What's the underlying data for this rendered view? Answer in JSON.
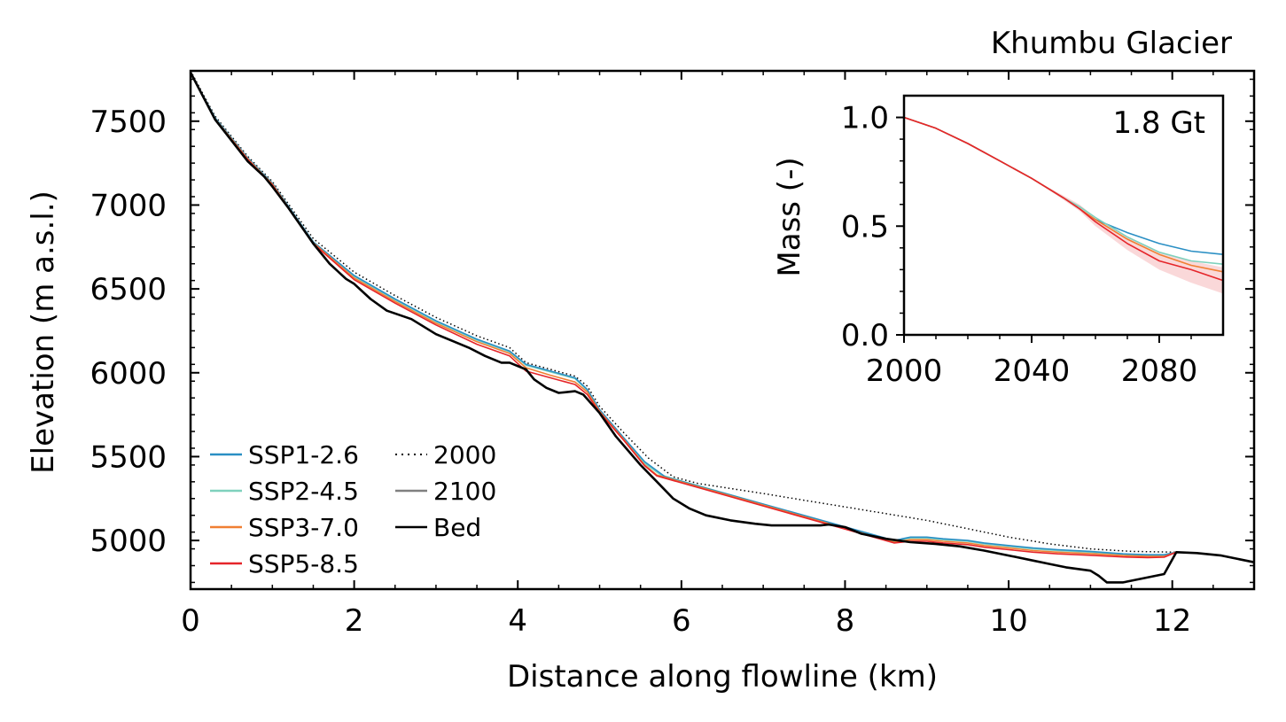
{
  "title": "Khumbu Glacier",
  "colors": {
    "ssp126": "#2a8fc4",
    "ssp245": "#7fd1bd",
    "ssp370": "#f07f32",
    "ssp585": "#e5252a",
    "y2100": "#808080",
    "bed": "#000000",
    "y2000": "#000000"
  },
  "legend": {
    "items": [
      {
        "label": "SSP1-2.6",
        "style": "solid",
        "color_key": "ssp126"
      },
      {
        "label": "SSP2-4.5",
        "style": "solid",
        "color_key": "ssp245"
      },
      {
        "label": "SSP3-7.0",
        "style": "solid",
        "color_key": "ssp370"
      },
      {
        "label": "SSP5-8.5",
        "style": "solid",
        "color_key": "ssp585"
      },
      {
        "label": "2000",
        "style": "dotted",
        "color_key": "y2000"
      },
      {
        "label": "2100",
        "style": "solid",
        "color_key": "y2100"
      },
      {
        "label": "Bed",
        "style": "solid",
        "color_key": "bed"
      }
    ]
  },
  "chart_data": [
    {
      "type": "line",
      "title": "Khumbu Glacier",
      "xlabel": "Distance along flowline (km)",
      "ylabel": "Elevation (m a.s.l.)",
      "xlim": [
        0,
        13
      ],
      "ylim": [
        4710,
        7800
      ],
      "xticks": [
        0,
        2,
        4,
        6,
        8,
        10,
        12
      ],
      "yticks": [
        5000,
        5500,
        6000,
        6500,
        7000,
        7500
      ],
      "x_tick_labels": [
        "0",
        "2",
        "4",
        "6",
        "8",
        "10",
        "12"
      ],
      "y_tick_labels": [
        "5000",
        "5500",
        "6000",
        "6500",
        "7000",
        "7500"
      ],
      "legend_position": "lower-left",
      "series": [
        {
          "name": "Bed",
          "color_key": "bed",
          "style": "solid",
          "x": [
            0,
            0.3,
            0.7,
            0.9,
            1.0,
            1.2,
            1.5,
            1.7,
            1.9,
            2.0,
            2.2,
            2.4,
            2.7,
            3.0,
            3.2,
            3.4,
            3.6,
            3.8,
            3.9,
            4.1,
            4.2,
            4.35,
            4.5,
            4.7,
            4.8,
            5.0,
            5.2,
            5.5,
            5.7,
            5.9,
            6.1,
            6.3,
            6.6,
            6.9,
            7.1,
            7.3,
            7.5,
            7.7,
            7.8,
            8.0,
            8.2,
            8.5,
            8.8,
            9.1,
            9.4,
            9.7,
            10.0,
            10.3,
            10.5,
            10.7,
            11.0,
            11.1,
            11.2,
            11.4,
            11.6,
            11.9,
            12.05,
            12.3,
            12.6,
            13.0
          ],
          "y": [
            7790,
            7510,
            7260,
            7170,
            7110,
            6980,
            6770,
            6650,
            6560,
            6530,
            6440,
            6370,
            6320,
            6230,
            6190,
            6150,
            6100,
            6060,
            6060,
            6020,
            5960,
            5910,
            5880,
            5890,
            5870,
            5760,
            5620,
            5450,
            5350,
            5250,
            5190,
            5150,
            5120,
            5100,
            5090,
            5090,
            5090,
            5090,
            5095,
            5080,
            5040,
            5010,
            4990,
            4980,
            4965,
            4940,
            4910,
            4880,
            4860,
            4840,
            4820,
            4790,
            4750,
            4750,
            4770,
            4800,
            4930,
            4925,
            4910,
            4870
          ]
        },
        {
          "name": "2000",
          "color_key": "y2000",
          "style": "dotted",
          "x": [
            0,
            0.3,
            0.7,
            1.0,
            1.5,
            2.0,
            2.5,
            3.0,
            3.5,
            3.9,
            4.1,
            4.4,
            4.7,
            4.85,
            5.0,
            5.3,
            5.6,
            5.9,
            6.2,
            6.6,
            7.0,
            7.5,
            8.0,
            8.5,
            9.0,
            9.5,
            10.0,
            10.5,
            11.0,
            11.5,
            12.05
          ],
          "y": [
            7800,
            7530,
            7290,
            7140,
            6800,
            6600,
            6460,
            6330,
            6220,
            6150,
            6060,
            6020,
            5980,
            5920,
            5800,
            5640,
            5490,
            5380,
            5340,
            5310,
            5280,
            5240,
            5200,
            5160,
            5120,
            5070,
            5020,
            4980,
            4950,
            4935,
            4930
          ]
        },
        {
          "name": "SSP1-2.6",
          "color_key": "ssp126",
          "style": "solid",
          "x": [
            0,
            0.3,
            0.7,
            1.0,
            1.5,
            2.0,
            2.5,
            3.0,
            3.5,
            3.9,
            4.1,
            4.4,
            4.7,
            4.85,
            5.0,
            5.3,
            5.55,
            5.8,
            8.6,
            8.8,
            9.0,
            9.2,
            9.5,
            9.7,
            10.0,
            10.3,
            10.6,
            11.0,
            11.4,
            11.7,
            11.9,
            12.05
          ],
          "y": [
            7790,
            7520,
            7280,
            7130,
            6780,
            6580,
            6440,
            6310,
            6200,
            6130,
            6050,
            6010,
            5970,
            5900,
            5780,
            5610,
            5470,
            5380,
            5000,
            5020,
            5020,
            5010,
            5000,
            4985,
            4970,
            4955,
            4945,
            4935,
            4920,
            4915,
            4915,
            4930
          ]
        },
        {
          "name": "SSP2-4.5",
          "color_key": "ssp245",
          "style": "solid",
          "x": [
            0,
            0.3,
            0.7,
            1.0,
            1.5,
            2.0,
            2.5,
            3.0,
            3.5,
            3.9,
            4.1,
            4.4,
            4.7,
            4.85,
            5.0,
            5.3,
            5.55,
            5.75,
            8.6,
            8.8,
            9.0,
            9.2,
            9.5,
            9.7,
            10.0,
            10.3,
            10.6,
            11.0,
            11.4,
            11.7,
            11.9,
            12.05
          ],
          "y": [
            7790,
            7520,
            7280,
            7130,
            6780,
            6575,
            6435,
            6305,
            6195,
            6125,
            6045,
            6005,
            5965,
            5895,
            5775,
            5600,
            5460,
            5390,
            4995,
            5015,
            5015,
            5005,
            4995,
            4980,
            4965,
            4950,
            4940,
            4930,
            4918,
            4912,
            4912,
            4930
          ]
        },
        {
          "name": "SSP3-7.0",
          "color_key": "ssp370",
          "style": "solid",
          "x": [
            0,
            0.3,
            0.7,
            1.0,
            1.5,
            2.0,
            2.5,
            3.0,
            3.5,
            3.9,
            4.1,
            4.4,
            4.7,
            4.85,
            5.0,
            5.3,
            5.55,
            5.7,
            8.6,
            8.8,
            9.0,
            9.2,
            9.5,
            9.7,
            10.0,
            10.3,
            10.6,
            11.0,
            11.4,
            11.7,
            11.9,
            12.05
          ],
          "y": [
            7790,
            7515,
            7275,
            7125,
            6775,
            6565,
            6425,
            6295,
            6185,
            6115,
            6030,
            5985,
            5945,
            5885,
            5770,
            5600,
            5450,
            5390,
            4990,
            5005,
            5005,
            4995,
            4985,
            4970,
            4955,
            4940,
            4930,
            4922,
            4910,
            4905,
            4905,
            4930
          ]
        },
        {
          "name": "SSP5-8.5",
          "color_key": "ssp585",
          "style": "solid",
          "x": [
            0,
            0.3,
            0.7,
            1.0,
            1.5,
            2.0,
            2.5,
            3.0,
            3.5,
            3.9,
            4.1,
            4.4,
            4.7,
            4.85,
            5.0,
            5.3,
            5.55,
            5.7,
            8.6,
            8.8,
            9.0,
            9.2,
            9.5,
            9.7,
            10.0,
            10.3,
            10.6,
            11.0,
            11.4,
            11.7,
            11.9,
            12.05
          ],
          "y": [
            7790,
            7510,
            7270,
            7120,
            6770,
            6555,
            6415,
            6285,
            6170,
            6100,
            6010,
            5970,
            5930,
            5870,
            5765,
            5595,
            5445,
            5385,
            4985,
            4995,
            4995,
            4985,
            4975,
            4960,
            4945,
            4930,
            4920,
            4912,
            4902,
            4898,
            4900,
            4930
          ]
        }
      ]
    },
    {
      "type": "line",
      "inset": true,
      "ylabel": "Mass (-)",
      "xlabel": "",
      "xlim": [
        2000,
        2100
      ],
      "ylim": [
        0.0,
        1.1
      ],
      "xticks": [
        2000,
        2040,
        2080
      ],
      "yticks": [
        0.0,
        0.5,
        1.0
      ],
      "x_tick_labels": [
        "2000",
        "2040",
        "2080"
      ],
      "y_tick_labels": [
        "0.0",
        "0.5",
        "1.0"
      ],
      "annotation": "1.8 Gt",
      "series": [
        {
          "name": "SSP1-2.6",
          "color_key": "ssp126",
          "x": [
            2000,
            2010,
            2020,
            2030,
            2040,
            2050,
            2055,
            2060,
            2070,
            2080,
            2090,
            2100
          ],
          "y": [
            1.0,
            0.95,
            0.88,
            0.8,
            0.72,
            0.63,
            0.58,
            0.53,
            0.47,
            0.42,
            0.385,
            0.37
          ]
        },
        {
          "name": "SSP2-4.5",
          "color_key": "ssp245",
          "x": [
            2000,
            2010,
            2020,
            2030,
            2040,
            2050,
            2055,
            2060,
            2070,
            2080,
            2090,
            2100
          ],
          "y": [
            1.0,
            0.95,
            0.88,
            0.8,
            0.72,
            0.63,
            0.59,
            0.54,
            0.45,
            0.38,
            0.34,
            0.325
          ]
        },
        {
          "name": "SSP3-7.0",
          "color_key": "ssp370",
          "x": [
            2000,
            2010,
            2020,
            2030,
            2040,
            2050,
            2055,
            2060,
            2070,
            2080,
            2090,
            2100
          ],
          "y": [
            1.0,
            0.95,
            0.88,
            0.8,
            0.72,
            0.63,
            0.58,
            0.53,
            0.44,
            0.37,
            0.32,
            0.29
          ]
        },
        {
          "name": "SSP5-8.5",
          "color_key": "ssp585",
          "x": [
            2000,
            2010,
            2020,
            2030,
            2040,
            2050,
            2055,
            2060,
            2070,
            2080,
            2090,
            2100
          ],
          "y": [
            1.0,
            0.95,
            0.88,
            0.8,
            0.72,
            0.63,
            0.58,
            0.52,
            0.42,
            0.34,
            0.3,
            0.25
          ],
          "band_low": [
            1.0,
            0.95,
            0.88,
            0.8,
            0.72,
            0.62,
            0.57,
            0.5,
            0.39,
            0.3,
            0.24,
            0.19
          ],
          "band_high": [
            1.0,
            0.95,
            0.88,
            0.8,
            0.72,
            0.64,
            0.6,
            0.54,
            0.45,
            0.38,
            0.34,
            0.31
          ]
        }
      ]
    }
  ]
}
